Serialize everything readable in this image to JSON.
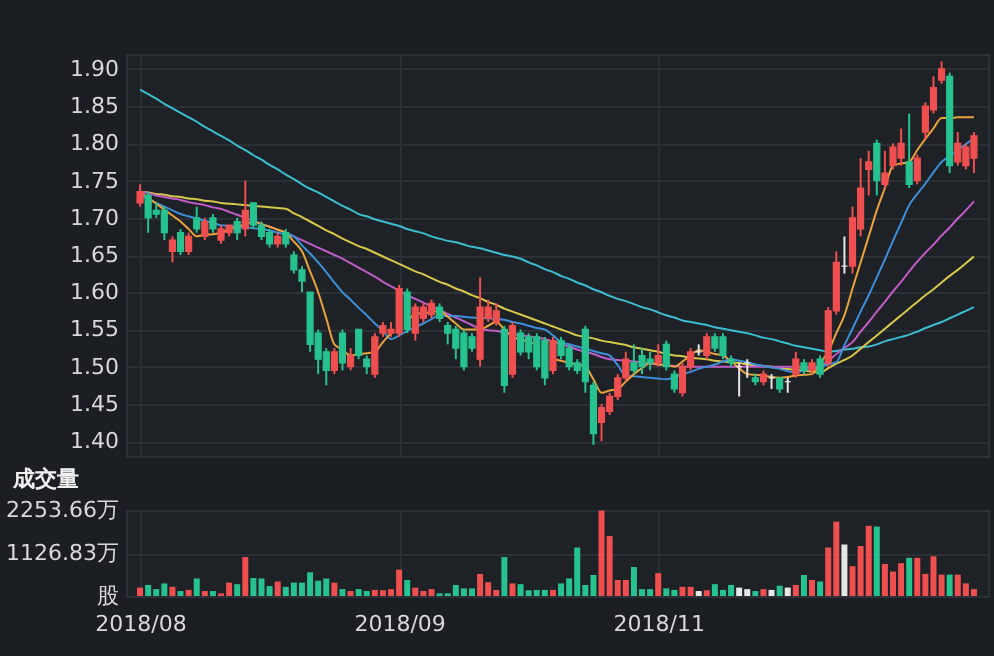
{
  "chart_data": [
    {
      "type": "candlestick",
      "categories": [
        "2018/08",
        null,
        null,
        null,
        null,
        null,
        null,
        null,
        null,
        null,
        null,
        null,
        null,
        null,
        null,
        null,
        null,
        null,
        null,
        null,
        null,
        null,
        null,
        null,
        null,
        null,
        null,
        null,
        null,
        null,
        null,
        null,
        "2018/09",
        null,
        null,
        null,
        null,
        null,
        null,
        null,
        null,
        null,
        null,
        null,
        null,
        null,
        null,
        null,
        null,
        null,
        null,
        null,
        null,
        null,
        null,
        null,
        null,
        null,
        null,
        null,
        null,
        null,
        null,
        null,
        "2018/11",
        null,
        null,
        null,
        null,
        null,
        null,
        null,
        null,
        null,
        null,
        null,
        null,
        null,
        null,
        null,
        null,
        null,
        null,
        null,
        null,
        null,
        null,
        null,
        null,
        null,
        null,
        null,
        null,
        null,
        null,
        null,
        null,
        null,
        null,
        null,
        null,
        null,
        null,
        null
      ],
      "ohlc": [
        [
          1.72,
          1.745,
          1.715,
          1.735
        ],
        [
          1.73,
          1.735,
          1.68,
          1.7
        ],
        [
          1.71,
          1.72,
          1.7,
          1.705
        ],
        [
          1.71,
          1.715,
          1.67,
          1.68
        ],
        [
          1.655,
          1.675,
          1.64,
          1.67
        ],
        [
          1.68,
          1.685,
          1.65,
          1.655
        ],
        [
          1.655,
          1.68,
          1.65,
          1.675
        ],
        [
          1.7,
          1.715,
          1.68,
          1.685
        ],
        [
          1.675,
          1.7,
          1.67,
          1.695
        ],
        [
          1.7,
          1.705,
          1.68,
          1.685
        ],
        [
          1.67,
          1.69,
          1.665,
          1.685
        ],
        [
          1.68,
          1.69,
          1.675,
          1.69
        ],
        [
          1.695,
          1.7,
          1.67,
          1.68
        ],
        [
          1.685,
          1.75,
          1.675,
          1.71
        ],
        [
          1.72,
          1.72,
          1.685,
          1.69
        ],
        [
          1.69,
          1.695,
          1.67,
          1.675
        ],
        [
          1.68,
          1.685,
          1.66,
          1.665
        ],
        [
          1.665,
          1.68,
          1.66,
          1.675
        ],
        [
          1.68,
          1.685,
          1.66,
          1.665
        ],
        [
          1.65,
          1.655,
          1.625,
          1.63
        ],
        [
          1.63,
          1.635,
          1.6,
          1.615
        ],
        [
          1.6,
          1.6,
          1.52,
          1.53
        ],
        [
          1.545,
          1.55,
          1.49,
          1.51
        ],
        [
          1.52,
          1.525,
          1.475,
          1.495
        ],
        [
          1.495,
          1.525,
          1.49,
          1.52
        ],
        [
          1.545,
          1.55,
          1.495,
          1.505
        ],
        [
          1.5,
          1.525,
          1.495,
          1.515
        ],
        [
          1.55,
          1.55,
          1.51,
          1.515
        ],
        [
          1.51,
          1.515,
          1.49,
          1.5
        ],
        [
          1.49,
          1.545,
          1.485,
          1.54
        ],
        [
          1.545,
          1.56,
          1.54,
          1.555
        ],
        [
          1.545,
          1.56,
          1.54,
          1.55
        ],
        [
          1.545,
          1.61,
          1.54,
          1.605
        ],
        [
          1.6,
          1.605,
          1.545,
          1.55
        ],
        [
          1.545,
          1.585,
          1.535,
          1.58
        ],
        [
          1.565,
          1.585,
          1.56,
          1.58
        ],
        [
          1.57,
          1.59,
          1.565,
          1.585
        ],
        [
          1.58,
          1.585,
          1.56,
          1.565
        ],
        [
          1.555,
          1.56,
          1.53,
          1.545
        ],
        [
          1.55,
          1.555,
          1.51,
          1.525
        ],
        [
          1.545,
          1.55,
          1.495,
          1.5
        ],
        [
          1.54,
          1.545,
          1.52,
          1.525
        ],
        [
          1.51,
          1.62,
          1.5,
          1.58
        ],
        [
          1.565,
          1.59,
          1.56,
          1.58
        ],
        [
          1.56,
          1.585,
          1.555,
          1.575
        ],
        [
          1.55,
          1.555,
          1.465,
          1.475
        ],
        [
          1.49,
          1.56,
          1.485,
          1.555
        ],
        [
          1.545,
          1.55,
          1.515,
          1.52
        ],
        [
          1.54,
          1.545,
          1.51,
          1.52
        ],
        [
          1.54,
          1.545,
          1.495,
          1.5
        ],
        [
          1.535,
          1.54,
          1.475,
          1.485
        ],
        [
          1.495,
          1.54,
          1.49,
          1.535
        ],
        [
          1.535,
          1.54,
          1.51,
          1.515
        ],
        [
          1.525,
          1.53,
          1.495,
          1.5
        ],
        [
          1.505,
          1.51,
          1.49,
          1.495
        ],
        [
          1.55,
          1.555,
          1.465,
          1.48
        ],
        [
          1.475,
          1.48,
          1.395,
          1.41
        ],
        [
          1.425,
          1.45,
          1.4,
          1.445
        ],
        [
          1.44,
          1.465,
          1.435,
          1.46
        ],
        [
          1.46,
          1.49,
          1.455,
          1.485
        ],
        [
          1.485,
          1.52,
          1.48,
          1.51
        ],
        [
          1.505,
          1.53,
          1.49,
          1.495
        ],
        [
          1.515,
          1.525,
          1.49,
          1.5
        ],
        [
          1.51,
          1.52,
          1.495,
          1.505
        ],
        [
          1.505,
          1.53,
          1.5,
          1.515
        ],
        [
          1.53,
          1.535,
          1.495,
          1.5
        ],
        [
          1.49,
          1.495,
          1.465,
          1.47
        ],
        [
          1.465,
          1.505,
          1.46,
          1.5
        ],
        [
          1.5,
          1.525,
          1.495,
          1.52
        ],
        [
          1.52,
          1.53,
          1.515,
          1.52
        ],
        [
          1.515,
          1.545,
          1.51,
          1.54
        ],
        [
          1.54,
          1.545,
          1.52,
          1.525
        ],
        [
          1.54,
          1.545,
          1.51,
          1.515
        ],
        [
          1.51,
          1.515,
          1.5,
          1.505
        ],
        [
          1.5,
          1.505,
          1.46,
          1.5
        ],
        [
          1.505,
          1.51,
          1.485,
          1.505
        ],
        [
          1.485,
          1.49,
          1.475,
          1.48
        ],
        [
          1.48,
          1.495,
          1.475,
          1.49
        ],
        [
          1.485,
          1.49,
          1.47,
          1.485
        ],
        [
          1.485,
          1.485,
          1.465,
          1.47
        ],
        [
          1.48,
          1.485,
          1.465,
          1.48
        ],
        [
          1.49,
          1.52,
          1.485,
          1.51
        ],
        [
          1.505,
          1.51,
          1.49,
          1.495
        ],
        [
          1.495,
          1.51,
          1.49,
          1.505
        ],
        [
          1.51,
          1.515,
          1.485,
          1.49
        ],
        [
          1.505,
          1.58,
          1.5,
          1.575
        ],
        [
          1.575,
          1.655,
          1.57,
          1.64
        ],
        [
          1.635,
          1.675,
          1.625,
          1.635
        ],
        [
          1.635,
          1.715,
          1.625,
          1.7
        ],
        [
          1.685,
          1.78,
          1.675,
          1.74
        ],
        [
          1.765,
          1.79,
          1.73,
          1.775
        ],
        [
          1.8,
          1.805,
          1.73,
          1.75
        ],
        [
          1.745,
          1.79,
          1.74,
          1.76
        ],
        [
          1.77,
          1.8,
          1.765,
          1.795
        ],
        [
          1.78,
          1.82,
          1.77,
          1.8
        ],
        [
          1.775,
          1.84,
          1.74,
          1.745
        ],
        [
          1.75,
          1.785,
          1.745,
          1.78
        ],
        [
          1.815,
          1.855,
          1.805,
          1.85
        ],
        [
          1.845,
          1.89,
          1.84,
          1.875
        ],
        [
          1.885,
          1.91,
          1.88,
          1.9
        ],
        [
          1.89,
          1.895,
          1.76,
          1.77
        ],
        [
          1.775,
          1.815,
          1.77,
          1.8
        ],
        [
          1.77,
          1.8,
          1.765,
          1.795
        ],
        [
          1.78,
          1.815,
          1.76,
          1.81
        ]
      ],
      "colors": [
        "#ef4f4f",
        "#26c28f",
        "#26c28f",
        "#26c28f",
        "#ef4f4f",
        "#26c28f",
        "#ef4f4f",
        "#26c28f",
        "#ef4f4f",
        "#26c28f",
        "#ef4f4f",
        "#ef4f4f",
        "#26c28f",
        "#ef4f4f",
        "#26c28f",
        "#26c28f",
        "#26c28f",
        "#ef4f4f",
        "#26c28f",
        "#26c28f",
        "#26c28f",
        "#26c28f",
        "#26c28f",
        "#26c28f",
        "#ef4f4f",
        "#26c28f",
        "#ef4f4f",
        "#26c28f",
        "#26c28f",
        "#ef4f4f",
        "#ef4f4f",
        "#ef4f4f",
        "#ef4f4f",
        "#26c28f",
        "#ef4f4f",
        "#ef4f4f",
        "#ef4f4f",
        "#26c28f",
        "#26c28f",
        "#26c28f",
        "#26c28f",
        "#26c28f",
        "#ef4f4f",
        "#ef4f4f",
        "#ef4f4f",
        "#26c28f",
        "#ef4f4f",
        "#26c28f",
        "#26c28f",
        "#26c28f",
        "#26c28f",
        "#ef4f4f",
        "#26c28f",
        "#26c28f",
        "#26c28f",
        "#26c28f",
        "#26c28f",
        "#ef4f4f",
        "#ef4f4f",
        "#ef4f4f",
        "#ef4f4f",
        "#26c28f",
        "#26c28f",
        "#26c28f",
        "#ef4f4f",
        "#26c28f",
        "#26c28f",
        "#ef4f4f",
        "#ef4f4f",
        "#e6e6e6",
        "#ef4f4f",
        "#26c28f",
        "#26c28f",
        "#26c28f",
        "#e6e6e6",
        "#e6e6e6",
        "#26c28f",
        "#ef4f4f",
        "#e6e6e6",
        "#26c28f",
        "#e6e6e6",
        "#ef4f4f",
        "#26c28f",
        "#ef4f4f",
        "#26c28f",
        "#ef4f4f",
        "#ef4f4f",
        "#e6e6e6",
        "#ef4f4f",
        "#ef4f4f",
        "#ef4f4f",
        "#26c28f",
        "#ef4f4f",
        "#ef4f4f",
        "#ef4f4f",
        "#26c28f",
        "#ef4f4f",
        "#ef4f4f",
        "#ef4f4f",
        "#ef4f4f",
        "#26c28f",
        "#ef4f4f",
        "#ef4f4f",
        "#ef4f4f"
      ],
      "series": [
        {
          "type": "line",
          "color": "#3cbcd0",
          "values": [
            1.872,
            1.866,
            1.86,
            1.853,
            1.847,
            1.841,
            1.835,
            1.829,
            1.822,
            1.816,
            1.81,
            1.804,
            1.797,
            1.791,
            1.784,
            1.778,
            1.771,
            1.765,
            1.758,
            1.752,
            1.745,
            1.739,
            1.734,
            1.728,
            1.722,
            1.716,
            1.711,
            1.705,
            1.702,
            1.698,
            1.695,
            1.692,
            1.689,
            1.685,
            1.682,
            1.679,
            1.675,
            1.672,
            1.669,
            1.667,
            1.664,
            1.661,
            1.659,
            1.656,
            1.653,
            1.65,
            1.648,
            1.645,
            1.64,
            1.636,
            1.631,
            1.627,
            1.622,
            1.618,
            1.613,
            1.609,
            1.604,
            1.6,
            1.595,
            1.591,
            1.588,
            1.584,
            1.58,
            1.577,
            1.573,
            1.569,
            1.566,
            1.562,
            1.56,
            1.558,
            1.556,
            1.553,
            1.551,
            1.549,
            1.547,
            1.545,
            1.542,
            1.539,
            1.537,
            1.534,
            1.531,
            1.528,
            1.526,
            1.524,
            1.522,
            1.52,
            1.521,
            1.523,
            1.524,
            1.526,
            1.527,
            1.53,
            1.534,
            1.537,
            1.54,
            1.543,
            1.547,
            1.552,
            1.556,
            1.56,
            1.565,
            1.57,
            1.575,
            1.58
          ]
        },
        {
          "type": "line",
          "color": "#d8c84a",
          "values": [
            1.735,
            1.734,
            1.732,
            1.731,
            1.729,
            1.728,
            1.726,
            1.725,
            1.723,
            1.722,
            1.72,
            1.719,
            1.718,
            1.717,
            1.716,
            1.715,
            1.714,
            1.713,
            1.712,
            1.706,
            1.701,
            1.695,
            1.689,
            1.683,
            1.678,
            1.672,
            1.667,
            1.662,
            1.658,
            1.653,
            1.648,
            1.643,
            1.638,
            1.633,
            1.628,
            1.624,
            1.619,
            1.614,
            1.61,
            1.605,
            1.601,
            1.596,
            1.592,
            1.587,
            1.583,
            1.578,
            1.574,
            1.57,
            1.566,
            1.562,
            1.558,
            1.554,
            1.55,
            1.546,
            1.542,
            1.54,
            1.538,
            1.535,
            1.533,
            1.531,
            1.529,
            1.526,
            1.524,
            1.522,
            1.52,
            1.517,
            1.515,
            1.514,
            1.512,
            1.511,
            1.51,
            1.508,
            1.507,
            1.506,
            1.505,
            1.503,
            1.502,
            1.501,
            1.5,
            1.498,
            1.497,
            1.496,
            1.495,
            1.493,
            1.492,
            1.498,
            1.504,
            1.509,
            1.515,
            1.524,
            1.533,
            1.542,
            1.551,
            1.56,
            1.569,
            1.578,
            1.587,
            1.596,
            1.604,
            1.613,
            1.622,
            1.63,
            1.639,
            1.648
          ]
        },
        {
          "type": "line",
          "color": "#c05cc8",
          "values": [
            1.735,
            1.733,
            1.73,
            1.728,
            1.726,
            1.724,
            1.721,
            1.719,
            1.717,
            1.714,
            1.712,
            1.708,
            1.704,
            1.7,
            1.696,
            1.692,
            1.688,
            1.684,
            1.68,
            1.675,
            1.67,
            1.665,
            1.66,
            1.655,
            1.65,
            1.645,
            1.639,
            1.633,
            1.627,
            1.621,
            1.614,
            1.608,
            1.602,
            1.596,
            1.591,
            1.586,
            1.581,
            1.576,
            1.571,
            1.566,
            1.561,
            1.556,
            1.551,
            1.549,
            1.548,
            1.546,
            1.544,
            1.542,
            1.541,
            1.539,
            1.537,
            1.534,
            1.53,
            1.527,
            1.523,
            1.52,
            1.517,
            1.513,
            1.51,
            1.509,
            1.508,
            1.507,
            1.506,
            1.504,
            1.503,
            1.502,
            1.501,
            1.5,
            1.5,
            1.5,
            1.5,
            1.5,
            1.5,
            1.5,
            1.5,
            1.5,
            1.5,
            1.5,
            1.5,
            1.5,
            1.5,
            1.5,
            1.5,
            1.5,
            1.5,
            1.508,
            1.517,
            1.525,
            1.533,
            1.547,
            1.56,
            1.574,
            1.587,
            1.601,
            1.614,
            1.628,
            1.641,
            1.653,
            1.664,
            1.676,
            1.687,
            1.699,
            1.71,
            1.722
          ]
        },
        {
          "type": "line",
          "color": "#3d8fd8",
          "values": [
            1.73,
            1.725,
            1.72,
            1.715,
            1.71,
            1.705,
            1.702,
            1.699,
            1.696,
            1.693,
            1.69,
            1.689,
            1.688,
            1.687,
            1.686,
            1.685,
            1.683,
            1.68,
            1.678,
            1.675,
            1.663,
            1.652,
            1.64,
            1.627,
            1.613,
            1.6,
            1.59,
            1.579,
            1.569,
            1.558,
            1.548,
            1.537,
            1.542,
            1.548,
            1.553,
            1.558,
            1.564,
            1.569,
            1.568,
            1.568,
            1.567,
            1.566,
            1.565,
            1.565,
            1.564,
            1.563,
            1.56,
            1.558,
            1.555,
            1.552,
            1.55,
            1.542,
            1.533,
            1.53,
            1.527,
            1.524,
            1.521,
            1.518,
            1.515,
            1.502,
            1.488,
            1.487,
            1.486,
            1.485,
            1.484,
            1.483,
            1.486,
            1.49,
            1.493,
            1.497,
            1.5,
            1.503,
            1.507,
            1.51,
            1.508,
            1.506,
            1.503,
            1.501,
            1.499,
            1.497,
            1.494,
            1.492,
            1.495,
            1.498,
            1.5,
            1.503,
            1.506,
            1.529,
            1.551,
            1.574,
            1.596,
            1.62,
            1.644,
            1.669,
            1.693,
            1.717,
            1.732,
            1.746,
            1.761,
            1.775,
            1.783,
            1.791,
            1.799,
            1.807
          ]
        },
        {
          "type": "line",
          "color": "#e8a33c",
          "values": [
            1.735,
            1.727,
            1.719,
            1.711,
            1.703,
            1.695,
            1.685,
            1.675,
            1.677,
            1.678,
            1.68,
            1.684,
            1.688,
            1.691,
            1.695,
            1.691,
            1.688,
            1.684,
            1.68,
            1.668,
            1.655,
            1.628,
            1.6,
            1.565,
            1.53,
            1.523,
            1.515,
            1.517,
            1.518,
            1.52,
            1.533,
            1.545,
            null,
            1.562,
            1.57,
            1.572,
            1.573,
            1.575,
            1.567,
            1.558,
            1.55,
            1.55,
            1.55,
            1.555,
            1.56,
            1.55,
            1.54,
            1.537,
            1.533,
            1.53,
            null,
            1.51,
            1.508,
            1.505,
            1.503,
            1.5,
            1.483,
            1.465,
            1.468,
            1.47,
            1.48,
            1.49,
            1.498,
            1.505,
            1.503,
            1.502,
            1.5,
            1.507,
            1.515,
            1.522,
            1.52,
            1.517,
            1.515,
            1.507,
            1.498,
            1.49,
            1.489,
            1.488,
            1.486,
            1.485,
            1.486,
            1.488,
            1.489,
            1.49,
            1.505,
            1.52,
            1.545,
            1.569,
            1.605,
            1.64,
            1.675,
            1.71,
            1.74,
            1.77,
            1.773,
            1.775,
            1.791,
            1.806,
            1.82,
            1.834,
            1.834,
            1.835,
            1.835,
            1.835
          ]
        }
      ],
      "ylim": [
        1.38,
        1.92
      ],
      "yticks": [
        {
          "value": 1.4,
          "label": "1.40"
        },
        {
          "value": 1.45,
          "label": "1.45"
        },
        {
          "value": 1.5,
          "label": "1.50"
        },
        {
          "value": 1.55,
          "label": "1.55"
        },
        {
          "value": 1.6,
          "label": "1.60"
        },
        {
          "value": 1.65,
          "label": "1.65"
        },
        {
          "value": 1.7,
          "label": "1.70"
        },
        {
          "value": 1.75,
          "label": "1.75"
        },
        {
          "value": 1.8,
          "label": "1.80"
        },
        {
          "value": 1.85,
          "label": "1.85"
        },
        {
          "value": 1.9,
          "label": "1.90"
        }
      ],
      "grid": true,
      "tick_labels": "y"
    },
    {
      "type": "bar",
      "title": "成交量",
      "categories": [
        "2018/08",
        null,
        null,
        null,
        null,
        null,
        null,
        null,
        null,
        null,
        null,
        null,
        null,
        null,
        null,
        null,
        null,
        null,
        null,
        null,
        null,
        null,
        null,
        null,
        null,
        null,
        null,
        null,
        null,
        null,
        null,
        null,
        "2018/09",
        null,
        null,
        null,
        null,
        null,
        null,
        null,
        null,
        null,
        null,
        null,
        null,
        null,
        null,
        null,
        null,
        null,
        null,
        null,
        null,
        null,
        null,
        null,
        null,
        null,
        null,
        null,
        null,
        null,
        null,
        null,
        "2018/11",
        null,
        null,
        null,
        null,
        null,
        null,
        null,
        null,
        null,
        null,
        null,
        null,
        null,
        null,
        null,
        null,
        null,
        null,
        null,
        null,
        null,
        null,
        null,
        null,
        null,
        null,
        null,
        null,
        null,
        null,
        null,
        null,
        null,
        null,
        null,
        null,
        null,
        null,
        null
      ],
      "values": [
        220,
        290,
        180,
        330,
        240,
        130,
        160,
        460,
        130,
        130,
        70,
        350,
        310,
        1020,
        470,
        460,
        260,
        380,
        240,
        350,
        350,
        620,
        400,
        460,
        350,
        180,
        130,
        180,
        130,
        160,
        150,
        180,
        690,
        420,
        220,
        130,
        180,
        70,
        70,
        290,
        200,
        200,
        580,
        360,
        160,
        1020,
        330,
        310,
        150,
        160,
        160,
        160,
        330,
        460,
        1270,
        290,
        550,
        2240,
        1570,
        420,
        420,
        760,
        180,
        180,
        600,
        200,
        160,
        240,
        240,
        130,
        150,
        310,
        160,
        290,
        220,
        180,
        130,
        180,
        160,
        270,
        220,
        290,
        550,
        420,
        380,
        1270,
        1950,
        1350,
        780,
        1310,
        1840,
        1820,
        840,
        640,
        860,
        1000,
        1000,
        580,
        1040,
        560,
        560,
        560,
        330,
        180
      ],
      "colors": [
        "#ef4f4f",
        "#26c28f",
        "#26c28f",
        "#26c28f",
        "#ef4f4f",
        "#26c28f",
        "#ef4f4f",
        "#26c28f",
        "#ef4f4f",
        "#26c28f",
        "#ef4f4f",
        "#ef4f4f",
        "#26c28f",
        "#ef4f4f",
        "#26c28f",
        "#26c28f",
        "#26c28f",
        "#ef4f4f",
        "#26c28f",
        "#26c28f",
        "#26c28f",
        "#26c28f",
        "#26c28f",
        "#26c28f",
        "#ef4f4f",
        "#26c28f",
        "#ef4f4f",
        "#26c28f",
        "#26c28f",
        "#ef4f4f",
        "#ef4f4f",
        "#ef4f4f",
        "#ef4f4f",
        "#26c28f",
        "#ef4f4f",
        "#ef4f4f",
        "#ef4f4f",
        "#26c28f",
        "#26c28f",
        "#26c28f",
        "#26c28f",
        "#26c28f",
        "#ef4f4f",
        "#ef4f4f",
        "#ef4f4f",
        "#26c28f",
        "#ef4f4f",
        "#26c28f",
        "#26c28f",
        "#26c28f",
        "#26c28f",
        "#ef4f4f",
        "#26c28f",
        "#26c28f",
        "#26c28f",
        "#26c28f",
        "#26c28f",
        "#ef4f4f",
        "#ef4f4f",
        "#ef4f4f",
        "#ef4f4f",
        "#26c28f",
        "#26c28f",
        "#26c28f",
        "#ef4f4f",
        "#26c28f",
        "#26c28f",
        "#ef4f4f",
        "#ef4f4f",
        "#e6e6e6",
        "#ef4f4f",
        "#26c28f",
        "#26c28f",
        "#26c28f",
        "#e6e6e6",
        "#e6e6e6",
        "#26c28f",
        "#ef4f4f",
        "#e6e6e6",
        "#26c28f",
        "#e6e6e6",
        "#ef4f4f",
        "#26c28f",
        "#ef4f4f",
        "#26c28f",
        "#ef4f4f",
        "#ef4f4f",
        "#e6e6e6",
        "#ef4f4f",
        "#ef4f4f",
        "#ef4f4f",
        "#26c28f",
        "#ef4f4f",
        "#ef4f4f",
        "#ef4f4f",
        "#26c28f",
        "#ef4f4f",
        "#ef4f4f",
        "#ef4f4f",
        "#ef4f4f",
        "#26c28f",
        "#ef4f4f",
        "#ef4f4f",
        "#ef4f4f"
      ],
      "ylim": [
        0,
        2253.66
      ],
      "yticks": [
        {
          "value": 0,
          "label": "股"
        },
        {
          "value": 1126.83,
          "label": "1126.83万"
        },
        {
          "value": 2253.66,
          "label": "2253.66万"
        }
      ],
      "grid": true
    }
  ]
}
